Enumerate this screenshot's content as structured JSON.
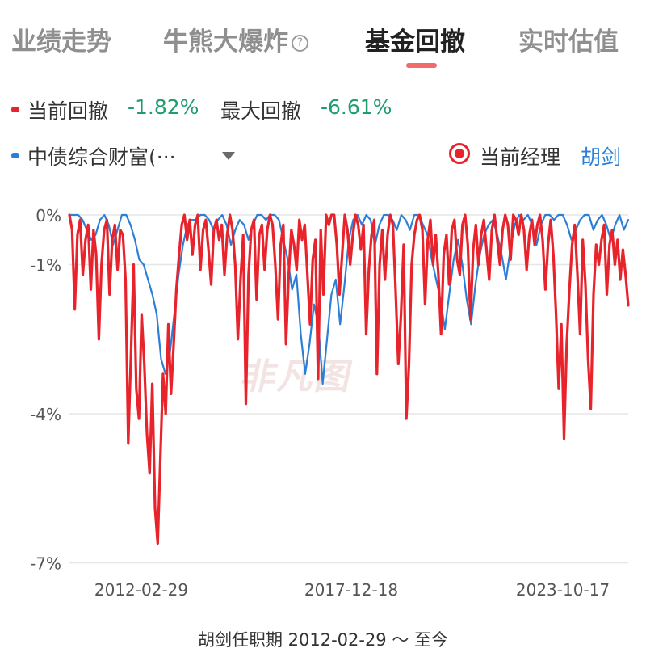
{
  "tabs": [
    {
      "label": "业绩走势"
    },
    {
      "label": "牛熊大爆炸"
    },
    {
      "label": "基金回撤"
    },
    {
      "label": "实时估值"
    }
  ],
  "active_tab": 2,
  "legend": {
    "fund_label": "当前回撤",
    "fund_value": "-1.82%",
    "max_label": "最大回撤",
    "max_value": "-6.61%",
    "benchmark_label": "中债综合财富(···",
    "manager_label": "当前经理",
    "manager_name": "胡剑"
  },
  "watermark": "非凡图",
  "footer": "胡剑任职期 2012-02-29 ～ 至今",
  "colors": {
    "fund": "#e8232b",
    "benchmark": "#2b7fd6",
    "positive": "#1f9d6e",
    "grid": "#e6e6e6"
  },
  "chart_data": {
    "type": "line",
    "yticks": [
      "0%",
      "-1%",
      "-4%",
      "-7%"
    ],
    "ylim": [
      -7,
      0
    ],
    "xticks": [
      "2012-02-29",
      "2017-12-18",
      "2023-10-17"
    ],
    "grid": true,
    "series": [
      {
        "name": "当前回撤",
        "color": "#e8232b",
        "values": [
          0,
          -0.3,
          -1.9,
          -0.4,
          -0.1,
          -1.2,
          -0.5,
          -0.2,
          -1.5,
          -0.3,
          -0.8,
          -2.5,
          -1.0,
          -0.3,
          -0.1,
          -1.6,
          -0.5,
          -0.2,
          -1.1,
          -0.3,
          -0.4,
          -1.3,
          -4.6,
          -2.8,
          -1.0,
          -3.5,
          -4.1,
          -2.0,
          -3.0,
          -4.4,
          -5.2,
          -3.4,
          -5.9,
          -6.61,
          -4.9,
          -3.2,
          -4.0,
          -2.2,
          -3.6,
          -2.6,
          -1.5,
          -0.8,
          -0.2,
          0,
          -0.5,
          -0.1,
          -0.8,
          -0.2,
          0,
          -1.1,
          -0.3,
          -0.1,
          -0.7,
          -1.4,
          -0.3,
          -0.1,
          -0.5,
          -0.2,
          -1.2,
          -0.4,
          0,
          -0.3,
          -1.0,
          -2.5,
          -1.3,
          -0.4,
          -3.8,
          -1.2,
          -0.3,
          -0.1,
          -1.7,
          -0.4,
          -0.2,
          -1.1,
          -0.3,
          0,
          -0.2,
          -1.0,
          -2.1,
          -0.6,
          -0.2,
          -2.6,
          -1.2,
          -0.3,
          -0.6,
          -1.1,
          -0.1,
          -0.5,
          -0.2,
          -1.2,
          -2.2,
          -0.9,
          -0.5,
          -3.3,
          -0.3,
          -1.6,
          0,
          -0.2,
          0,
          0,
          -0.6,
          -1.6,
          -0.8,
          0,
          -0.3,
          -1.0,
          -0.4,
          0,
          -0.2,
          -0.7,
          -0.2,
          -2.4,
          -1.1,
          -0.4,
          -0.1,
          -3.2,
          -1.0,
          -0.3,
          -1.3,
          -0.4,
          0,
          -0.2,
          -1.5,
          -3.0,
          -2.0,
          -0.6,
          -4.1,
          -3.0,
          -1.0,
          -0.4,
          -0.1,
          0,
          -0.3,
          -1.8,
          -0.5,
          -0.1,
          -1.0,
          -0.4,
          -1.2,
          -2.4,
          -0.8,
          -0.4,
          -1.4,
          -0.3,
          -0.1,
          -0.9,
          -1.2,
          -0.2,
          0,
          -0.6,
          -2.1,
          -0.7,
          -0.2,
          -1.0,
          -0.4,
          -0.1,
          -0.7,
          -1.3,
          -0.3,
          0,
          -0.5,
          -1.0,
          -0.3,
          0,
          -0.2,
          -0.9,
          0,
          -0.1,
          -0.4,
          0,
          -0.3,
          -1.1,
          -0.4,
          -0.1,
          -0.6,
          -0.2,
          0,
          -0.5,
          -1.5,
          -0.6,
          -0.1,
          -0.8,
          -2.0,
          -3.5,
          -2.2,
          -4.5,
          -2.6,
          -1.5,
          -0.6,
          -0.2,
          -1.2,
          -2.4,
          -0.5,
          -1.4,
          -2.9,
          -3.9,
          -1.6,
          -0.6,
          -1.0,
          -0.5,
          -0.2,
          -1.6,
          -0.6,
          -0.3,
          -1.0,
          -0.5,
          -1.3,
          -0.7,
          -1.2,
          -1.82
        ]
      },
      {
        "name": "中债综合财富(···",
        "color": "#2b7fd6",
        "values": [
          0,
          0,
          0,
          -0.1,
          -0.3,
          -0.5,
          -0.4,
          -0.1,
          0,
          -0.2,
          -0.6,
          -0.3,
          0,
          0,
          -0.2,
          -0.5,
          -0.9,
          -1.0,
          -1.3,
          -1.6,
          -2.0,
          -2.9,
          -3.2,
          -2.8,
          -2.0,
          -1.2,
          -0.6,
          -0.2,
          -0.1,
          -0.1,
          0,
          0,
          -0.1,
          -0.3,
          -0.1,
          0,
          -0.2,
          -0.6,
          -0.3,
          -0.1,
          -0.2,
          -0.5,
          -0.2,
          0,
          0,
          -0.1,
          0,
          0,
          -0.1,
          -0.5,
          -0.9,
          -1.5,
          -1.2,
          -2.4,
          -3.2,
          -2.6,
          -1.8,
          -2.2,
          -3.4,
          -2.5,
          -1.6,
          -1.3,
          -2.2,
          -1.4,
          -0.5,
          -0.1,
          0,
          -0.2,
          0,
          -0.1,
          -0.6,
          -0.2,
          0,
          0,
          -0.1,
          -0.3,
          0,
          -0.1,
          -0.3,
          0,
          0,
          -0.2,
          -0.4,
          -0.9,
          -1.3,
          -1.7,
          -2.3,
          -1.6,
          -0.9,
          -0.5,
          -1.0,
          -1.7,
          -2.2,
          -1.4,
          -0.8,
          -0.4,
          -0.2,
          -0.1,
          -0.4,
          -0.8,
          -1.3,
          -0.7,
          -0.2,
          0,
          -0.1,
          0,
          -0.2,
          -0.6,
          -0.2,
          0,
          0,
          -0.1,
          0,
          0,
          -0.2,
          -0.5,
          -0.3,
          -0.1,
          0,
          0,
          -0.3,
          -0.1,
          0,
          -0.2,
          -0.5,
          -0.2,
          0,
          -0.3,
          -0.1
        ]
      }
    ]
  }
}
